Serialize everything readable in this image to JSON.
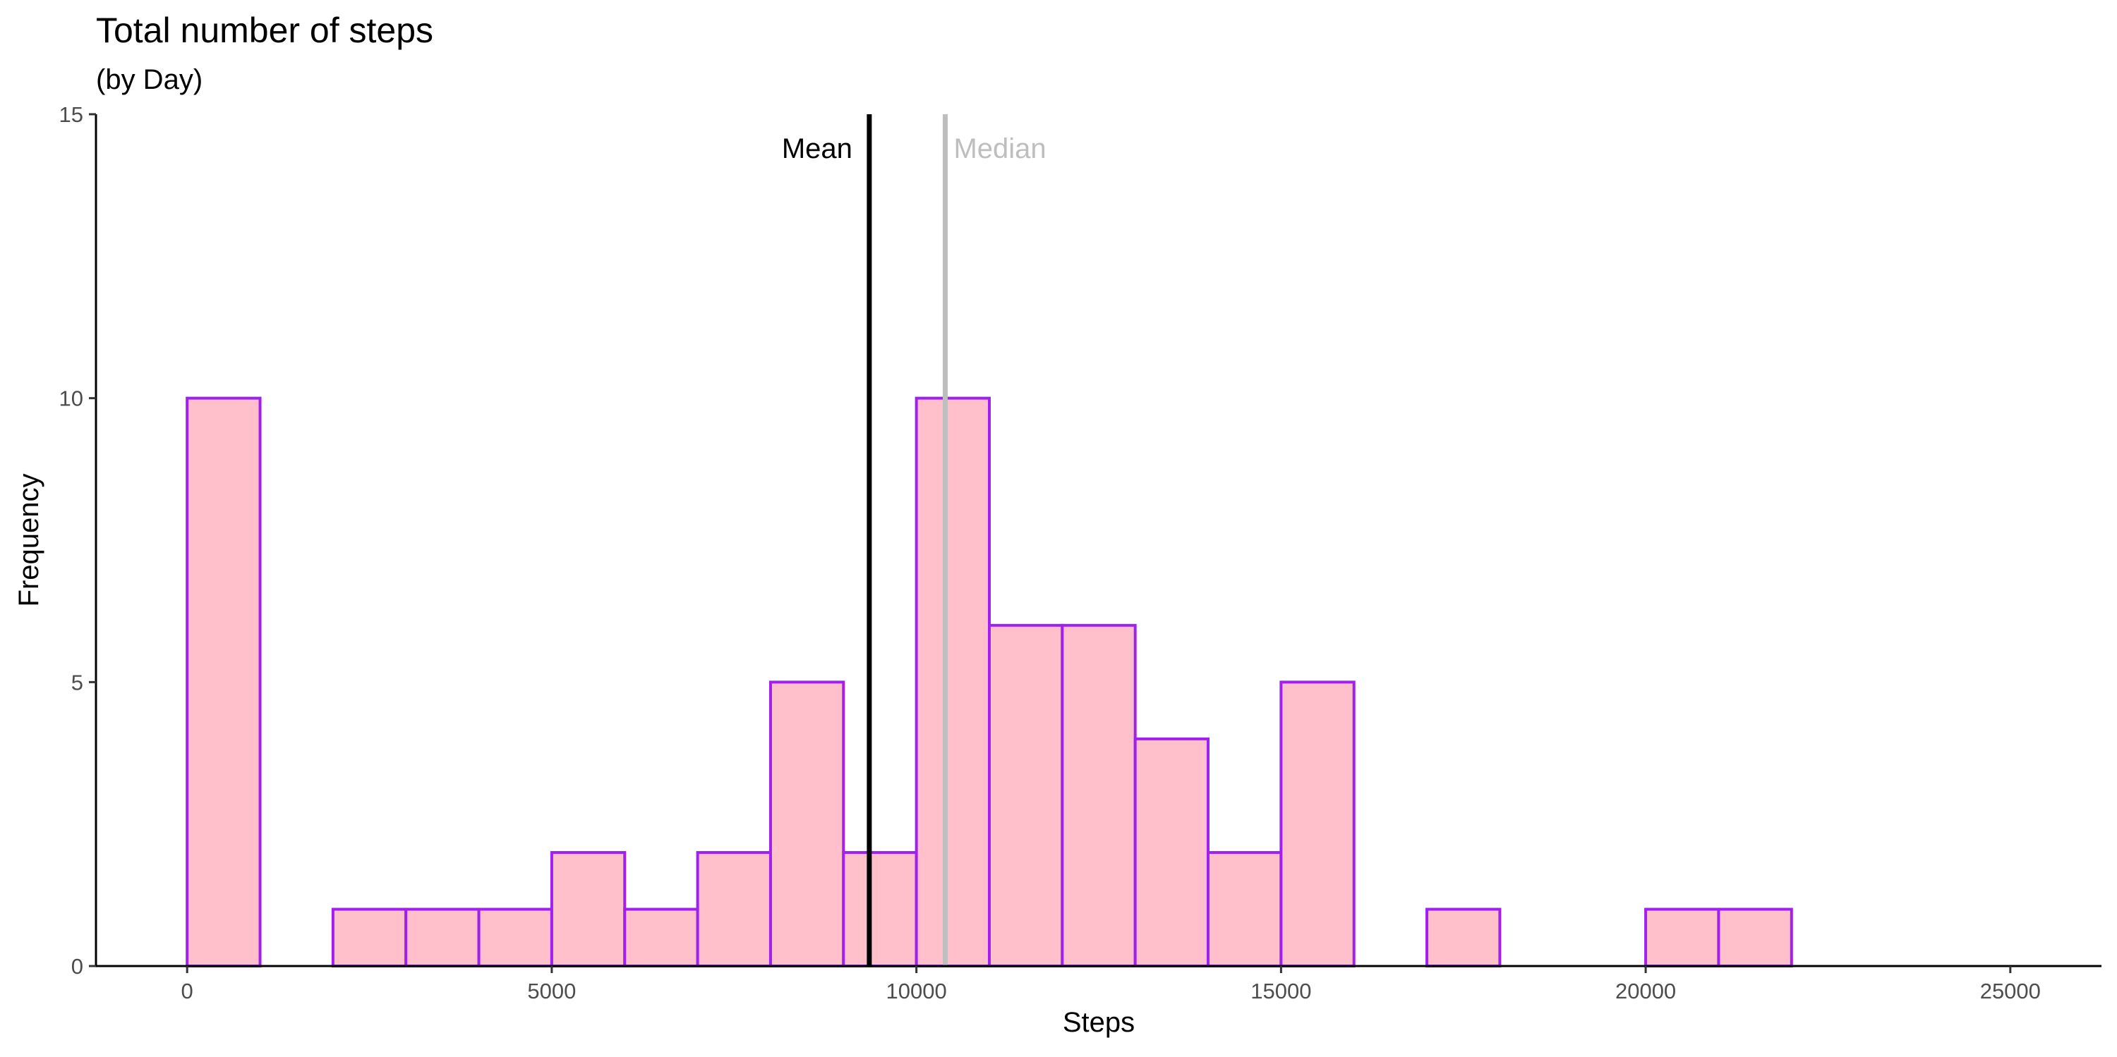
{
  "chart_data": {
    "type": "bar",
    "title": "Total number of steps",
    "subtitle": "(by Day)",
    "xlabel": "Steps",
    "ylabel": "Frequency",
    "bin_width": 1000,
    "bins": [
      {
        "start": 0,
        "end": 1000,
        "count": 10
      },
      {
        "start": 2000,
        "end": 3000,
        "count": 1
      },
      {
        "start": 3000,
        "end": 4000,
        "count": 1
      },
      {
        "start": 4000,
        "end": 5000,
        "count": 1
      },
      {
        "start": 5000,
        "end": 6000,
        "count": 2
      },
      {
        "start": 6000,
        "end": 7000,
        "count": 1
      },
      {
        "start": 7000,
        "end": 8000,
        "count": 2
      },
      {
        "start": 8000,
        "end": 9000,
        "count": 5
      },
      {
        "start": 9000,
        "end": 10000,
        "count": 2
      },
      {
        "start": 10000,
        "end": 11000,
        "count": 10
      },
      {
        "start": 11000,
        "end": 12000,
        "count": 6
      },
      {
        "start": 12000,
        "end": 13000,
        "count": 6
      },
      {
        "start": 13000,
        "end": 14000,
        "count": 4
      },
      {
        "start": 14000,
        "end": 15000,
        "count": 2
      },
      {
        "start": 15000,
        "end": 16000,
        "count": 5
      },
      {
        "start": 17000,
        "end": 18000,
        "count": 1
      },
      {
        "start": 20000,
        "end": 21000,
        "count": 1
      },
      {
        "start": 21000,
        "end": 22000,
        "count": 1
      }
    ],
    "xlim": [
      -1250,
      26250
    ],
    "ylim": [
      0,
      15
    ],
    "xticks": [
      0,
      5000,
      10000,
      15000,
      20000,
      25000
    ],
    "yticks": [
      0,
      5,
      10,
      15
    ],
    "reference_lines": [
      {
        "label": "Mean",
        "value": 9354,
        "color": "#000000",
        "label_side": "left"
      },
      {
        "label": "Median",
        "value": 10395,
        "color": "#bebebe",
        "label_side": "right"
      }
    ],
    "colors": {
      "bar_fill": "#ffc0cb",
      "bar_stroke": "#a020f0",
      "axis": "#000000"
    },
    "grid": false,
    "legend": "none"
  }
}
